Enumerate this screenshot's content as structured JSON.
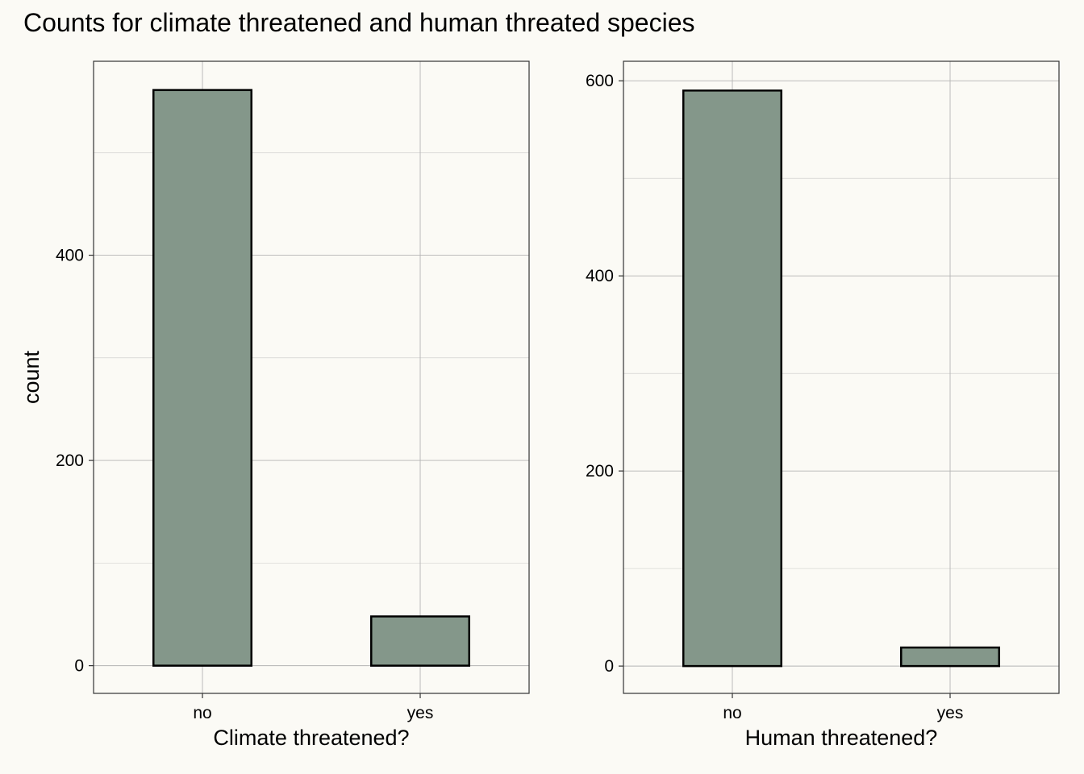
{
  "title": "Counts for climate threatened and human threated species",
  "colors": {
    "background": "#fbfaf5",
    "bar_fill": "#84978a",
    "bar_stroke": "#000000",
    "grid": "#c8c8c8",
    "panel_border": "#333333"
  },
  "chart_data": [
    {
      "type": "bar",
      "categories": [
        "no",
        "yes"
      ],
      "values": [
        561,
        48
      ],
      "title": "",
      "xlabel": "Climate threatened?",
      "ylabel": "count",
      "ylim": [
        -27,
        589
      ],
      "yticks": [
        0,
        200,
        400
      ],
      "grid": true,
      "legend": "none"
    },
    {
      "type": "bar",
      "categories": [
        "no",
        "yes"
      ],
      "values": [
        590,
        19
      ],
      "title": "",
      "xlabel": "Human threatened?",
      "ylabel": "",
      "ylim": [
        -28,
        620
      ],
      "yticks": [
        0,
        200,
        400,
        600
      ],
      "grid": true,
      "legend": "none"
    }
  ]
}
